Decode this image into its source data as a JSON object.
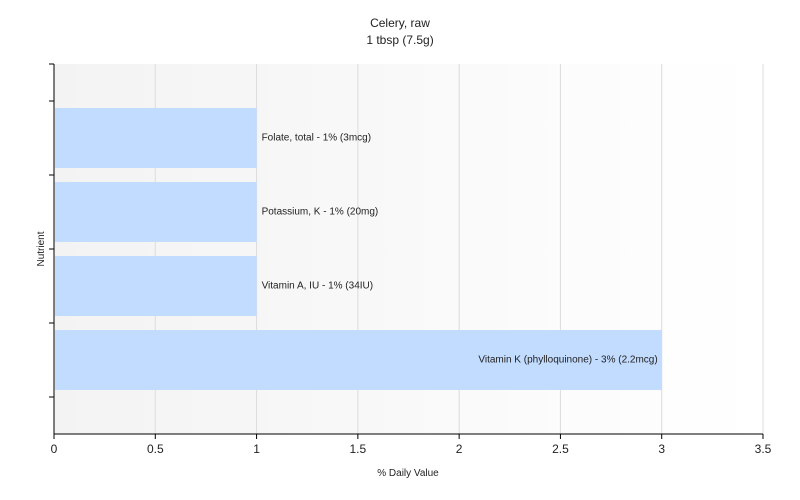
{
  "chart_data": {
    "type": "bar",
    "orientation": "horizontal",
    "title": "Celery, raw",
    "subtitle": "1 tbsp (7.5g)",
    "xlabel": "% Daily Value",
    "ylabel": "Nutrient",
    "xlim": [
      0,
      3.5
    ],
    "x_ticks": [
      "0",
      "0.5",
      "1",
      "1.5",
      "2",
      "2.5",
      "3",
      "3.5"
    ],
    "grid": true,
    "bar_color": "#c2dcff",
    "bars": [
      {
        "category": "Folate, total",
        "value": 1,
        "label": "Folate, total - 1% (3mcg)"
      },
      {
        "category": "Potassium, K",
        "value": 1,
        "label": "Potassium, K - 1% (20mg)"
      },
      {
        "category": "Vitamin A, IU",
        "value": 1,
        "label": "Vitamin A, IU - 1% (34IU)"
      },
      {
        "category": "Vitamin K (phylloquinone)",
        "value": 3,
        "label": "Vitamin K (phylloquinone) - 3% (2.2mcg)"
      }
    ]
  }
}
